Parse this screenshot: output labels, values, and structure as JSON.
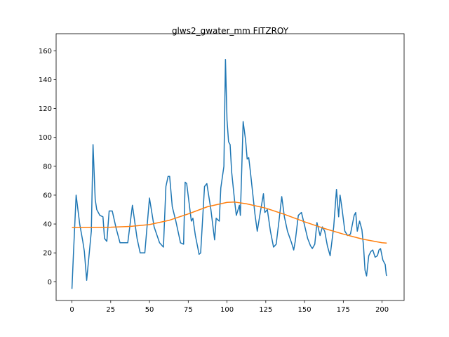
{
  "chart_data": {
    "type": "line",
    "title": "glws2_gwater_mm FITZROY",
    "xlim": [
      -10.2,
      214.2
    ],
    "ylim": [
      -13,
      167
    ],
    "xticks": [
      0,
      25,
      50,
      75,
      100,
      125,
      150,
      175,
      200
    ],
    "yticks": [
      0,
      20,
      40,
      60,
      80,
      100,
      120,
      140,
      160
    ],
    "grid": false,
    "series": [
      {
        "color": "#1f77b4",
        "x": [
          0,
          1,
          2.7,
          5,
          7,
          8,
          9.5,
          11,
          12.5,
          13.6,
          15,
          16,
          18,
          20,
          21,
          22.5,
          24,
          26,
          28.5,
          31,
          33,
          36,
          39,
          42,
          44,
          47,
          50,
          53,
          56.5,
          59,
          60.6,
          62,
          63,
          64.7,
          67,
          70,
          72,
          73,
          74,
          77,
          78,
          79.6,
          82,
          83,
          85.5,
          87,
          89.6,
          92,
          93,
          95,
          96,
          98,
          99,
          100,
          101,
          102,
          103,
          105,
          106,
          108,
          108.6,
          109.5,
          110.4,
          112,
          113,
          114,
          115,
          117,
          118,
          119.5,
          121,
          123.5,
          124.4,
          126,
          128,
          130,
          131.7,
          133.5,
          135.3,
          137,
          139,
          141.6,
          143,
          144,
          146,
          148,
          149.8,
          152,
          153.8,
          155,
          156.6,
          158,
          160,
          161.5,
          163,
          164.7,
          166.5,
          168.8,
          170.6,
          172,
          172.9,
          174,
          176,
          177.8,
          179.6,
          182,
          183,
          184,
          185.5,
          187,
          188,
          189,
          190,
          191.4,
          192.8,
          194,
          195.5,
          197,
          198,
          199,
          200.5,
          202,
          202.7,
          203
        ],
        "values": [
          -5,
          20,
          60,
          40,
          28,
          21,
          1,
          18,
          35,
          95,
          57,
          50,
          46,
          45,
          30,
          28,
          49,
          49,
          37,
          27,
          27,
          27,
          53,
          30,
          20,
          20,
          58,
          38,
          27,
          24,
          66,
          73,
          73,
          52,
          42,
          27,
          26,
          69,
          68,
          42,
          44,
          32,
          19,
          20,
          66,
          68,
          50,
          29,
          44,
          42,
          65,
          80,
          154,
          112,
          97,
          95,
          76,
          55,
          46,
          53,
          46,
          78,
          111,
          98,
          85,
          86,
          77,
          57,
          47,
          35,
          45,
          61,
          48,
          50,
          35,
          24,
          26,
          42,
          59,
          45,
          35,
          27,
          22,
          28,
          46,
          48,
          40,
          30,
          25,
          23,
          26,
          41,
          32,
          38,
          35,
          25,
          18,
          38,
          64,
          45,
          60,
          52,
          35,
          32,
          33,
          46,
          48,
          35,
          42,
          36,
          25,
          8,
          4,
          18,
          21,
          22,
          17,
          18,
          22,
          23,
          15,
          12,
          5,
          4
        ]
      },
      {
        "color": "#ff7f0e",
        "x": [
          0,
          12.5,
          25,
          37.5,
          50,
          62.5,
          75,
          87.5,
          100,
          105,
          112.5,
          125,
          137.5,
          150,
          162.5,
          175,
          187.5,
          200,
          203
        ],
        "values": [
          37.5,
          37.6,
          37.8,
          38.3,
          39.6,
          42.5,
          47,
          52,
          55,
          55.2,
          54,
          51,
          46.5,
          41.5,
          37,
          33,
          29.5,
          27,
          26.8
        ]
      }
    ]
  }
}
